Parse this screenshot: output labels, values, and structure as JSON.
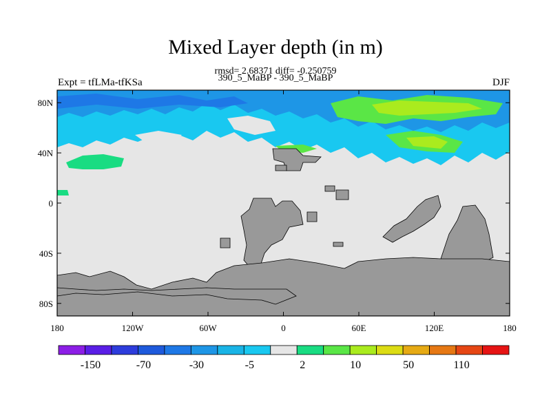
{
  "title": "Mixed Layer depth (in m)",
  "stats": "rmsd= 2.68371  diff= -0.250759",
  "subtitle": "390_5_MaBP - 390_5_MaBP",
  "left_label": "Expt = tfLMa-tfKSa",
  "right_label": "DJF",
  "colors": {
    "land": "#999999",
    "ocean_zero": "#e6e6e6",
    "neg_light": "#19c8f0",
    "neg_mid": "#1e96e6",
    "pos_light": "#19dc82",
    "pos_mid": "#5ae646",
    "pos_strong": "#aaeb1e"
  },
  "colorbar": {
    "colors": [
      "#8c1ee6",
      "#5a1ee6",
      "#2d3cdc",
      "#1e5adc",
      "#1e78e6",
      "#1e96e6",
      "#19b4e6",
      "#19c8f0",
      "#e6e6e6",
      "#19dc82",
      "#5ae646",
      "#aaeb1e",
      "#dcdc14",
      "#e6aa14",
      "#e67814",
      "#e64614",
      "#e61414"
    ],
    "labels": [
      "-150",
      "-70",
      "-30",
      "-5",
      "2",
      "10",
      "50",
      "110"
    ]
  },
  "chart_data": {
    "type": "heatmap",
    "title": "Mixed Layer depth (in m)",
    "x_ticks": [
      "180",
      "120W",
      "60W",
      "0",
      "60E",
      "120E",
      "180"
    ],
    "y_ticks": [
      "80N",
      "40N",
      "0",
      "40S",
      "80S"
    ],
    "xlim": [
      -180,
      180
    ],
    "ylim": [
      -90,
      90
    ],
    "contour_levels": [
      -150,
      -110,
      -70,
      -50,
      -30,
      -10,
      -5,
      -2,
      2,
      5,
      10,
      30,
      50,
      70,
      110,
      150
    ]
  }
}
